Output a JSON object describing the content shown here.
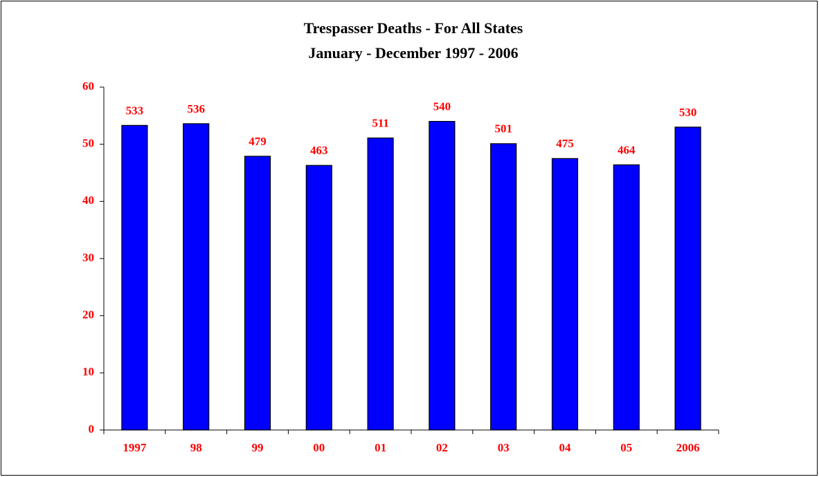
{
  "chart_data": {
    "type": "bar",
    "title": "Trespasser Deaths - For All States",
    "subtitle": "January - December 1997 - 2006",
    "categories": [
      "1997",
      "98",
      "99",
      "00",
      "01",
      "02",
      "03",
      "04",
      "05",
      "2006"
    ],
    "values": [
      53.3,
      53.6,
      47.9,
      46.3,
      51.1,
      54.0,
      50.1,
      47.5,
      46.4,
      53.0
    ],
    "value_labels": [
      "533",
      "536",
      "479",
      "463",
      "511",
      "540",
      "501",
      "475",
      "464",
      "530"
    ],
    "color": "#0000ff",
    "ylim": [
      0,
      60
    ],
    "yticks": [
      0,
      10,
      20,
      30,
      40,
      50,
      60
    ],
    "grid": false
  }
}
